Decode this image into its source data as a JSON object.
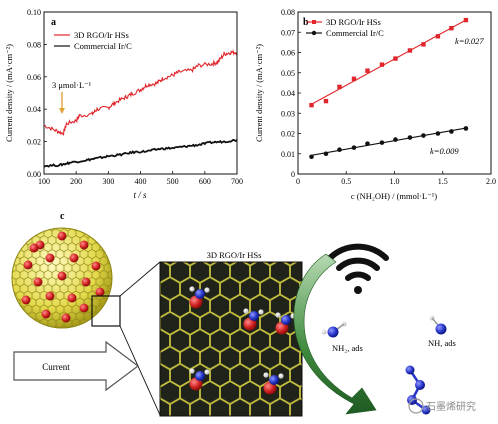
{
  "chart_data": [
    {
      "panel": "a",
      "type": "line",
      "xlabel": "t / s",
      "ylabel": "Current density / (mA·cm⁻²)",
      "xlim": [
        100,
        700
      ],
      "ylim": [
        0,
        0.1
      ],
      "xticks": [
        100,
        200,
        300,
        400,
        500,
        600,
        700
      ],
      "yticks": [
        0,
        0.02,
        0.04,
        0.06,
        0.08,
        0.1
      ],
      "xtick_labels": [
        "100",
        "200",
        "300",
        "400",
        "500",
        "600",
        "700"
      ],
      "ytick_labels": [
        "0.00",
        "0.02",
        "0.04",
        "0.06",
        "0.08",
        "0.10"
      ],
      "annotation": "3 μmol·L⁻¹",
      "legend_position": "top-left",
      "series": [
        {
          "name": "3D RGO/Ir HSs",
          "color": "#e0262b",
          "x": [
            100,
            135,
            160,
            170,
            200,
            210,
            250,
            265,
            300,
            320,
            350,
            370,
            400,
            420,
            450,
            470,
            500,
            520,
            560,
            580,
            620,
            640,
            660,
            680,
            700
          ],
          "y": [
            0.03,
            0.027,
            0.025,
            0.031,
            0.033,
            0.036,
            0.037,
            0.04,
            0.041,
            0.044,
            0.047,
            0.049,
            0.052,
            0.055,
            0.056,
            0.059,
            0.061,
            0.063,
            0.064,
            0.067,
            0.068,
            0.069,
            0.074,
            0.075,
            0.075
          ]
        },
        {
          "name": "Commercial Ir/C",
          "color": "#111111",
          "x": [
            100,
            150,
            180,
            230,
            260,
            300,
            340,
            380,
            420,
            460,
            500,
            540,
            580,
            620,
            660,
            700
          ],
          "y": [
            0.005,
            0.0055,
            0.007,
            0.0085,
            0.0095,
            0.011,
            0.012,
            0.0135,
            0.014,
            0.0155,
            0.016,
            0.017,
            0.018,
            0.0195,
            0.02,
            0.021
          ]
        }
      ]
    },
    {
      "panel": "b",
      "type": "scatter",
      "xlabel": "c (NH₂OH) / (mmol·L⁻¹)",
      "ylabel": "Current density / (mA·cm⁻²)",
      "xlim": [
        0,
        2.0
      ],
      "ylim": [
        0,
        0.08
      ],
      "xticks": [
        0,
        0.5,
        1.0,
        1.5,
        2.0
      ],
      "yticks": [
        0,
        0.01,
        0.02,
        0.03,
        0.04,
        0.05,
        0.06,
        0.07,
        0.08
      ],
      "xtick_labels": [
        "0",
        "0.5",
        "1.0",
        "1.5",
        "2.0"
      ],
      "ytick_labels": [
        "0",
        "0.01",
        "0.02",
        "0.03",
        "0.04",
        "0.05",
        "0.06",
        "0.07",
        "0.08"
      ],
      "legend_position": "top-left",
      "series": [
        {
          "name": "3D RGO/Ir HSs",
          "color": "#e0262b",
          "marker": "square",
          "x": [
            0.14,
            0.29,
            0.43,
            0.58,
            0.72,
            0.87,
            1.01,
            1.16,
            1.3,
            1.45,
            1.59,
            1.74
          ],
          "y": [
            0.034,
            0.036,
            0.043,
            0.047,
            0.051,
            0.054,
            0.057,
            0.061,
            0.064,
            0.068,
            0.072,
            0.076
          ],
          "slope_label": "k=0.027"
        },
        {
          "name": "Commercial Ir/C",
          "color": "#111111",
          "marker": "circle",
          "x": [
            0.14,
            0.29,
            0.43,
            0.58,
            0.72,
            0.87,
            1.01,
            1.16,
            1.3,
            1.45,
            1.59,
            1.74
          ],
          "y": [
            0.0085,
            0.01,
            0.012,
            0.013,
            0.015,
            0.0155,
            0.017,
            0.018,
            0.019,
            0.02,
            0.021,
            0.0225
          ],
          "slope_label": "k=0.009"
        }
      ]
    }
  ],
  "panels": {
    "a_label": "a",
    "b_label": "b",
    "c_label": "c"
  },
  "schematic": {
    "title": "3D RGO/Ir HSs",
    "current_label": "Current",
    "nh2_label": "NH₂, ads",
    "nh_label": "NH, ads",
    "colors": {
      "graphene": "#d6cf3a",
      "ir": "#cc1d1d",
      "nitrogen": "#1f2fb8",
      "arrow": "#2f7a32"
    }
  },
  "watermark": "石墨烯研究"
}
